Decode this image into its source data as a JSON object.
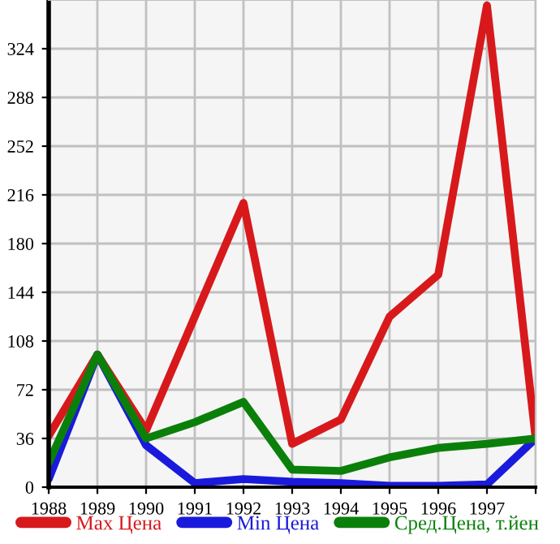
{
  "chart_data": {
    "type": "line",
    "x": [
      1988,
      1989,
      1990,
      1991,
      1992,
      1993,
      1994,
      1995,
      1996,
      1997,
      1998
    ],
    "series": [
      {
        "name": "Max Цена",
        "color": "#d7191c",
        "values": [
          38,
          98,
          42,
          126,
          210,
          32,
          50,
          126,
          157,
          356,
          36
        ]
      },
      {
        "name": "Min Цена",
        "color": "#1a1adc",
        "values": [
          6,
          98,
          31,
          3,
          6,
          4,
          3,
          1,
          1,
          2,
          36
        ]
      },
      {
        "name": "Сред.Цена, т.йен",
        "color": "#0a800a",
        "values": [
          18,
          98,
          36,
          48,
          63,
          13,
          12,
          22,
          29,
          32,
          36
        ]
      }
    ],
    "xlim": [
      1988,
      1998
    ],
    "xticks": [
      1988,
      1989,
      1990,
      1991,
      1992,
      1993,
      1994,
      1995,
      1996,
      1997,
      {
        "value": 1998,
        "label": null
      }
    ],
    "ylim": [
      0,
      360
    ],
    "yticks": [
      0,
      36,
      72,
      108,
      144,
      180,
      216,
      252,
      288,
      324
    ],
    "grid": true,
    "legend": "bottom",
    "marker": "none",
    "line_style": "solid"
  }
}
